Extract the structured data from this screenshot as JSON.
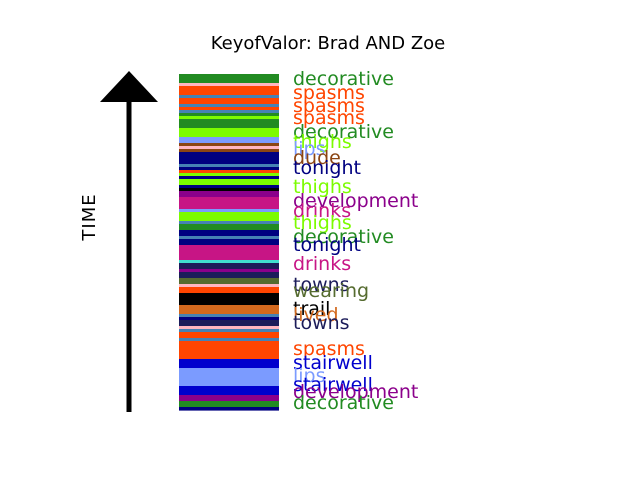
{
  "chart_data": {
    "type": "bar",
    "title": "KeyofValor: Brad AND Zoe",
    "ylabel": "TIME",
    "colors": {
      "decorative": "#228b22",
      "spasms": "#ff4500",
      "thighs": "#7cfc00",
      "lips": "#7b9bff",
      "dude": "#8b4513",
      "tonight": "#000080",
      "development": "#8b008b",
      "drinks": "#c71585",
      "towns": "#1c1c5a",
      "wearing": "#556b2f",
      "trail": "#000000",
      "lived": "#d2691e",
      "stairwell": "#0000cd",
      "stripe_blue": "#4682b4",
      "stripe_cyan": "#40e0d0",
      "stripe_pink": "#ffb6c1"
    },
    "stripes": [
      "decorative",
      "decorative",
      "decorative",
      "pink",
      "spasms",
      "spasms",
      "spasms",
      "stripe_blue",
      "spasms",
      "spasms",
      "stripe_blue",
      "spasms",
      "stripe_blue",
      "decorative",
      "thighs",
      "decorative",
      "decorative",
      "decorative",
      "thighs",
      "thighs",
      "thighs",
      "lips",
      "lips",
      "dude",
      "pink",
      "dude",
      "tonight",
      "tonight",
      "tonight",
      "tonight",
      "stripe_blue",
      "tonight",
      "spasms",
      "thighs",
      "tonight",
      "thighs",
      "thighs",
      "tonight",
      "trail",
      "development",
      "development",
      "drinks",
      "drinks",
      "drinks",
      "drinks",
      "lips",
      "thighs",
      "thighs",
      "thighs",
      "stripe_blue",
      "decorative",
      "decorative",
      "tonight",
      "tonight",
      "stripe_blue",
      "tonight",
      "tonight",
      "drinks",
      "drinks",
      "drinks",
      "drinks",
      "drinks",
      "stripe_cyan",
      "towns",
      "towns",
      "development",
      "towns",
      "towns",
      "wearing",
      "wearing",
      "pink",
      "spasms",
      "spasms",
      "trail",
      "trail",
      "trail",
      "trail",
      "lived",
      "lived",
      "lived",
      "stripe_blue",
      "tonight",
      "towns",
      "towns",
      "pink",
      "stripe_blue",
      "spasms",
      "spasms",
      "stripe_blue",
      "spasms",
      "spasms",
      "spasms",
      "spasms",
      "spasms",
      "spasms",
      "stairwell",
      "stairwell",
      "stairwell",
      "lips",
      "lips",
      "lips",
      "lips",
      "lips",
      "lips",
      "stairwell",
      "stairwell",
      "stairwell",
      "development",
      "development",
      "decorative",
      "decorative",
      "tonight"
    ],
    "labels": [
      {
        "word": "decorative",
        "color": "#228b22"
      },
      {
        "word": "spasms",
        "color": "#ff4500"
      },
      {
        "word": "spasms",
        "color": "#ff4500"
      },
      {
        "word": "spasms",
        "color": "#ff4500"
      },
      {
        "word": "decorative",
        "color": "#228b22"
      },
      {
        "word": "thighs",
        "color": "#7cfc00"
      },
      {
        "word": "lips",
        "color": "#7b9bff"
      },
      {
        "word": "dude",
        "color": "#8b4513"
      },
      {
        "word": "tonight",
        "color": "#000080"
      },
      {
        "word": "thighs",
        "color": "#7cfc00"
      },
      {
        "word": "development",
        "color": "#8b008b"
      },
      {
        "word": "drinks",
        "color": "#c71585"
      },
      {
        "word": "thighs",
        "color": "#7cfc00"
      },
      {
        "word": "decorative",
        "color": "#228b22"
      },
      {
        "word": "tonight",
        "color": "#000080"
      },
      {
        "word": "drinks",
        "color": "#c71585"
      },
      {
        "word": "towns",
        "color": "#1c1c5a"
      },
      {
        "word": "wearing",
        "color": "#556b2f"
      },
      {
        "word": "trail",
        "color": "#000000"
      },
      {
        "word": "lived",
        "color": "#d2691e"
      },
      {
        "word": "towns",
        "color": "#1c1c5a"
      },
      {
        "word": "spasms",
        "color": "#ff4500"
      },
      {
        "word": "stairwell",
        "color": "#0000cd"
      },
      {
        "word": "lips",
        "color": "#7b9bff"
      },
      {
        "word": "stairwell",
        "color": "#0000cd"
      },
      {
        "word": "development",
        "color": "#8b008b"
      },
      {
        "word": "decorative",
        "color": "#228b22"
      }
    ]
  }
}
